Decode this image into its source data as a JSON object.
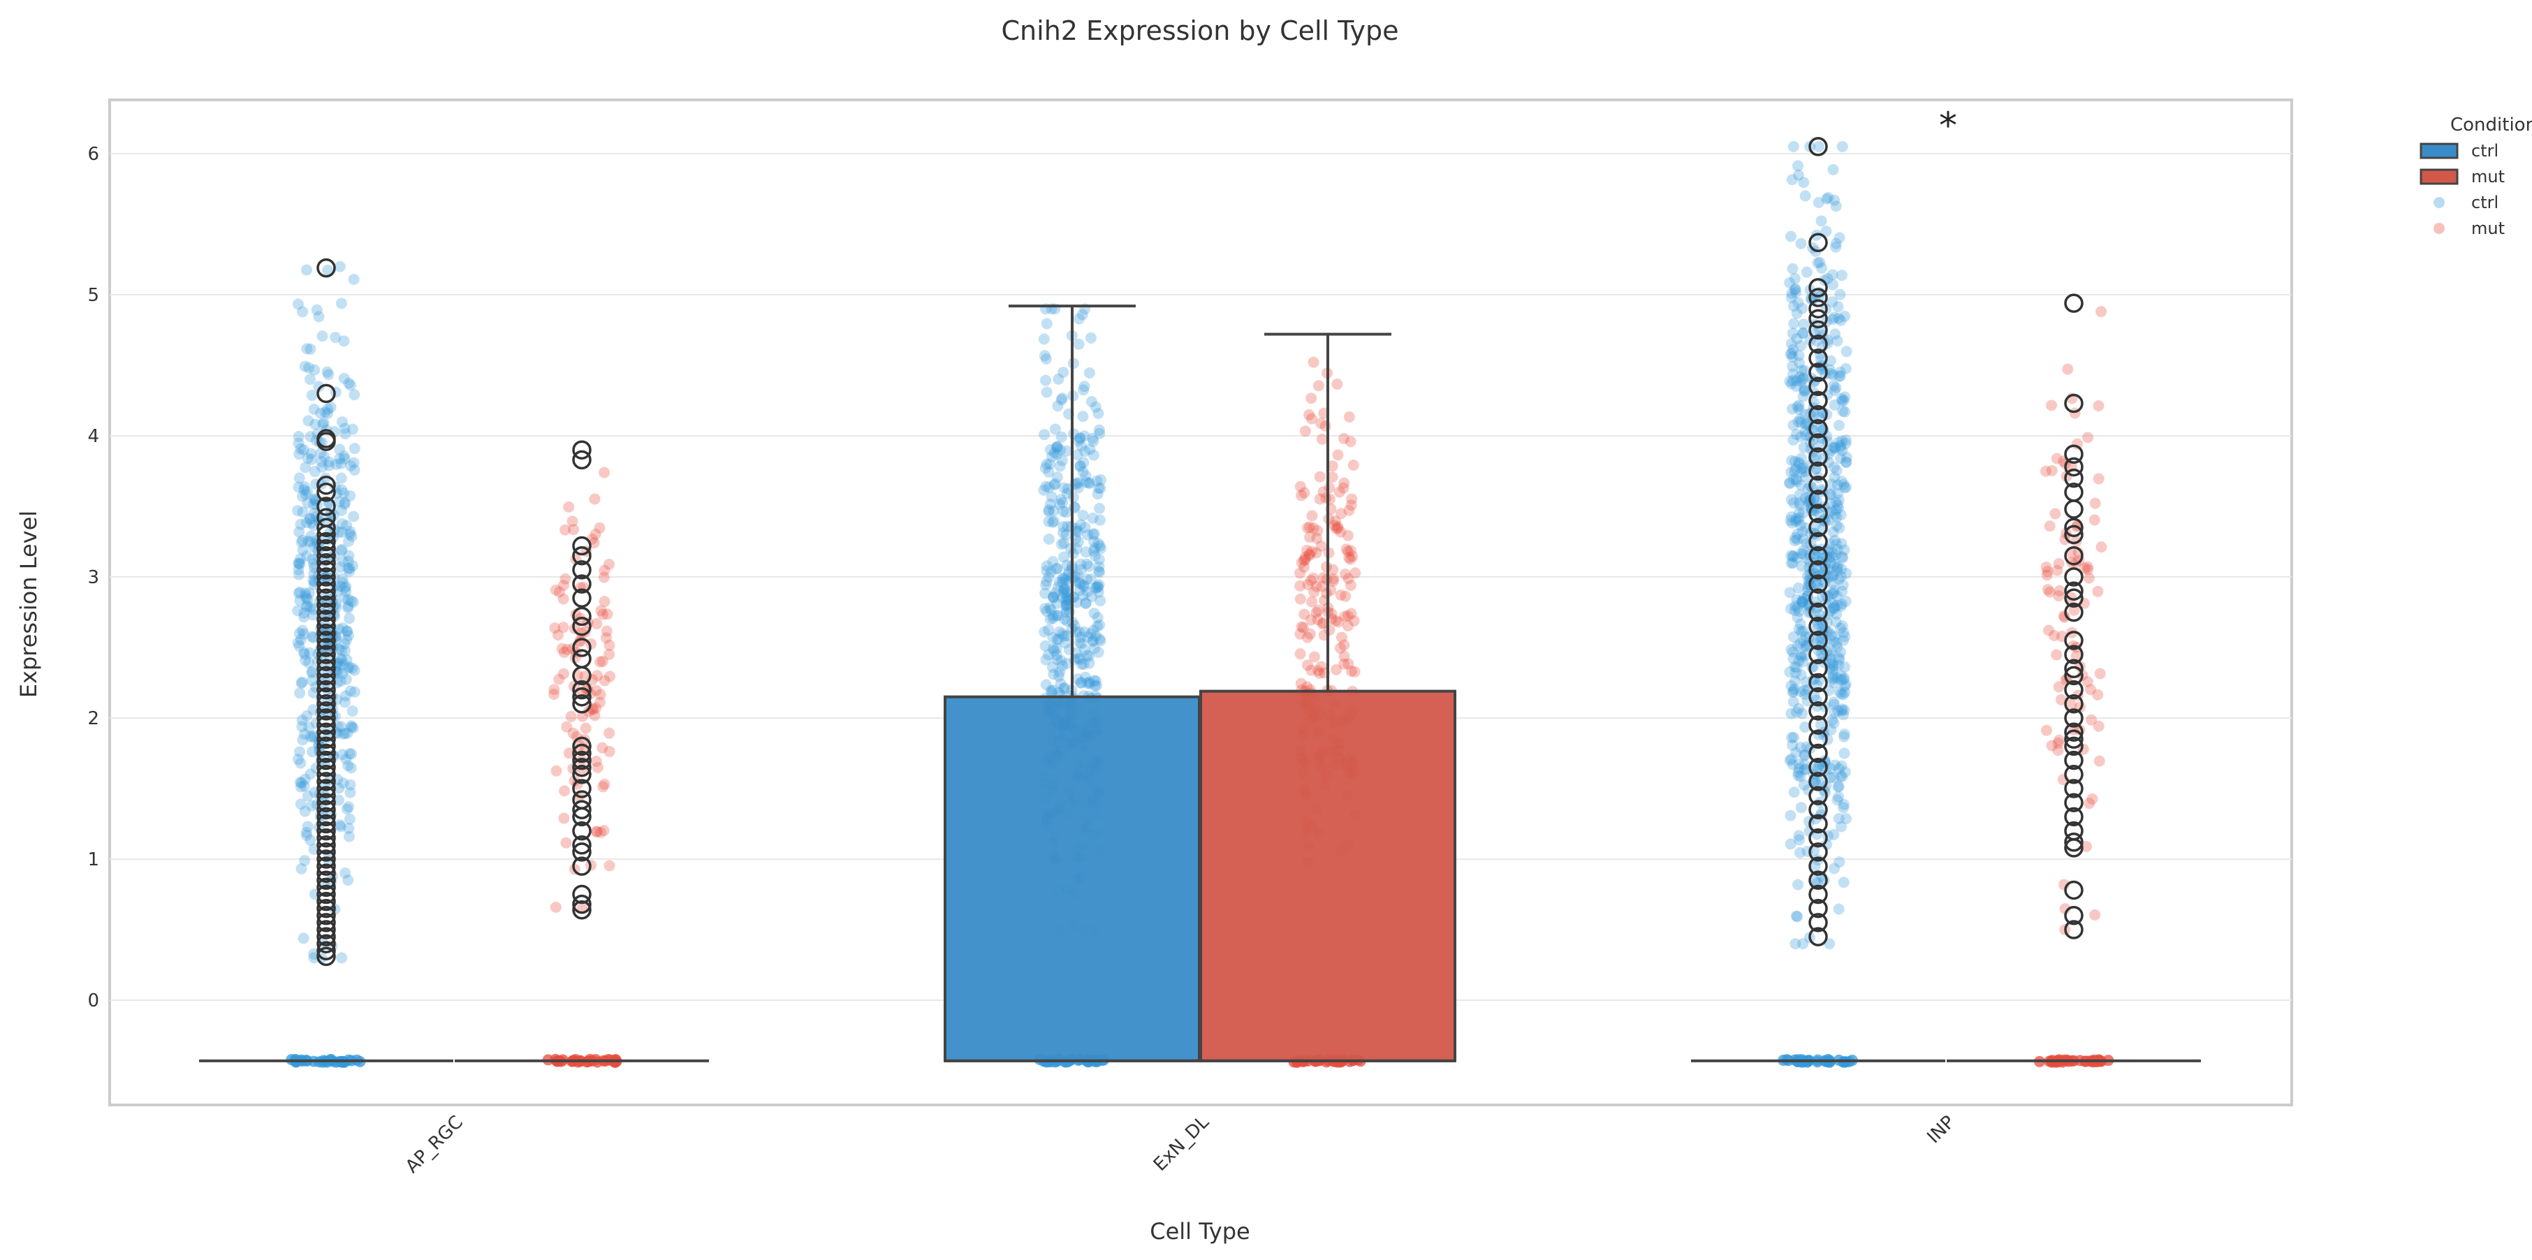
{
  "chart_data": {
    "type": "box",
    "title": "Cnih2 Expression by Cell Type",
    "xlabel": "Cell Type",
    "ylabel": "Expression Level",
    "ylim": [
      -0.75,
      6.4
    ],
    "yticks": [
      0,
      1,
      2,
      3,
      4,
      5,
      6
    ],
    "grid": true,
    "legend_position": "top-right, outside plot",
    "legend_title": "Condition",
    "categories": [
      "AP_RGC",
      "ExN_DL",
      "INP"
    ],
    "colors": {
      "ctrl": "#3a8cc8",
      "mut": "#d2584a",
      "ctrl_points": "#3498db",
      "mut_points": "#e74c3c"
    },
    "series": [
      {
        "name": "ctrl",
        "boxes": [
          {
            "category": "AP_RGC",
            "q1": -0.43,
            "median": -0.43,
            "q3": -0.43,
            "whisker_low": -0.43,
            "whisker_high": -0.43,
            "points_range": [
              0.3,
              5.2
            ],
            "n_points": 420
          },
          {
            "category": "ExN_DL",
            "q1": -0.43,
            "median": -0.43,
            "q3": 2.15,
            "whisker_low": -0.43,
            "whisker_high": 4.92,
            "points_range": [
              0.5,
              4.9
            ],
            "n_points": 430
          },
          {
            "category": "INP",
            "q1": -0.43,
            "median": -0.43,
            "q3": -0.43,
            "whisker_low": -0.43,
            "whisker_high": -0.43,
            "points_range": [
              0.4,
              6.05
            ],
            "n_points": 650
          }
        ]
      },
      {
        "name": "mut",
        "boxes": [
          {
            "category": "AP_RGC",
            "q1": -0.43,
            "median": -0.43,
            "q3": -0.43,
            "whisker_low": -0.43,
            "whisker_high": -0.43,
            "points_range": [
              0.65,
              3.9
            ],
            "n_points": 110
          },
          {
            "category": "ExN_DL",
            "q1": -0.43,
            "median": -0.43,
            "q3": 2.19,
            "whisker_low": -0.43,
            "whisker_high": 4.72,
            "points_range": [
              0.7,
              4.72
            ],
            "n_points": 200
          },
          {
            "category": "INP",
            "q1": -0.43,
            "median": -0.43,
            "q3": -0.43,
            "whisker_low": -0.43,
            "whisker_high": -0.43,
            "points_range": [
              0.5,
              4.95
            ],
            "n_points": 90
          }
        ]
      }
    ],
    "outliers": {
      "AP_RGC_ctrl": [
        5.19,
        4.3,
        3.98,
        3.96,
        3.65,
        3.6,
        3.5,
        3.42,
        3.35,
        3.3,
        3.25,
        3.2,
        3.15,
        3.1,
        3.05,
        3.0,
        2.95,
        2.9,
        2.85,
        2.8,
        2.75,
        2.7,
        2.65,
        2.6,
        2.55,
        2.5,
        2.45,
        2.4,
        2.35,
        2.3,
        2.25,
        2.2,
        2.15,
        2.1,
        2.05,
        2.0,
        1.95,
        1.9,
        1.85,
        1.8,
        1.75,
        1.7,
        1.65,
        1.6,
        1.55,
        1.5,
        1.45,
        1.4,
        1.35,
        1.3,
        1.25,
        1.2,
        1.15,
        1.1,
        1.05,
        1.0,
        0.95,
        0.9,
        0.85,
        0.8,
        0.75,
        0.7,
        0.65,
        0.6,
        0.55,
        0.5,
        0.45,
        0.4,
        0.35,
        0.31
      ],
      "AP_RGC_mut": [
        3.9,
        3.83,
        3.22,
        3.15,
        3.05,
        2.95,
        2.85,
        2.72,
        2.65,
        2.5,
        2.42,
        2.3,
        2.2,
        2.15,
        2.1,
        1.8,
        1.75,
        1.7,
        1.65,
        1.6,
        1.5,
        1.42,
        1.35,
        1.3,
        1.2,
        1.1,
        1.05,
        0.95,
        0.75,
        0.68,
        0.64
      ],
      "ExN_DL_ctrl": [],
      "ExN_DL_mut": [],
      "INP_ctrl": [
        6.05,
        5.37,
        5.05,
        4.98,
        4.9,
        4.83,
        4.75,
        4.65,
        4.55,
        4.45,
        4.35,
        4.25,
        4.15,
        4.05,
        3.95,
        3.85,
        3.75,
        3.65,
        3.55,
        3.45,
        3.35,
        3.25,
        3.15,
        3.05,
        2.95,
        2.85,
        2.75,
        2.65,
        2.55,
        2.45,
        2.35,
        2.25,
        2.15,
        2.05,
        1.95,
        1.85,
        1.75,
        1.65,
        1.55,
        1.45,
        1.35,
        1.25,
        1.15,
        1.05,
        0.95,
        0.85,
        0.75,
        0.65,
        0.55,
        0.45
      ],
      "INP_mut": [
        4.94,
        4.23,
        3.87,
        3.78,
        3.7,
        3.6,
        3.48,
        3.35,
        3.3,
        3.15,
        3.0,
        2.9,
        2.85,
        2.75,
        2.55,
        2.45,
        2.35,
        2.3,
        2.2,
        2.1,
        2.0,
        1.9,
        1.85,
        1.8,
        1.7,
        1.6,
        1.5,
        1.4,
        1.3,
        1.2,
        1.12,
        1.08,
        0.78,
        0.6,
        0.5
      ]
    },
    "annotations": [
      {
        "text": "*",
        "category": "INP",
        "y": 6.2
      }
    ],
    "legend": [
      {
        "label": "ctrl",
        "kind": "box",
        "color": "#3a8cc8"
      },
      {
        "label": "mut",
        "kind": "box",
        "color": "#d2584a"
      },
      {
        "label": "ctrl",
        "kind": "point",
        "color": "#3498db"
      },
      {
        "label": "mut",
        "kind": "point",
        "color": "#e74c3c"
      }
    ]
  }
}
